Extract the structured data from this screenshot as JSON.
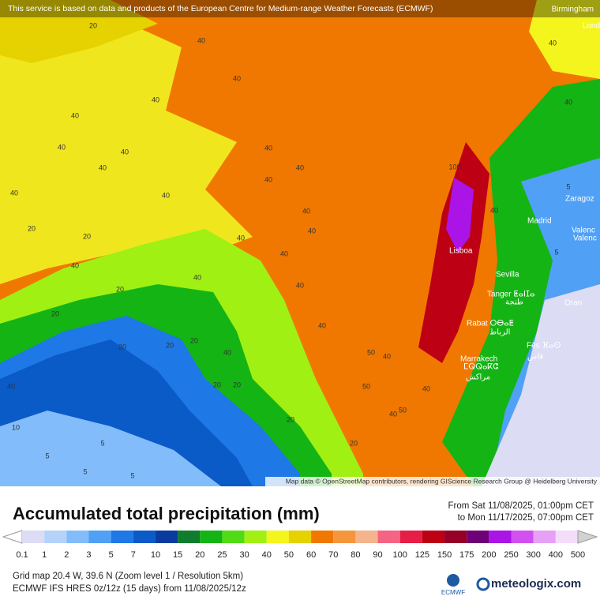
{
  "attribution": "This service is based on data and products of the European Centre for Medium-range Weather Forecasts (ECMWF)",
  "map_credit": "Map data © OpenStreetMap contributors, rendering GIScience Research Group @ Heidelberg University",
  "places": [
    "Birmingham",
    "Lond",
    "Zaragoz",
    "Madrid",
    "Valenc",
    "Valenc",
    "Lisboa",
    "Sevilla",
    "Tanger ⵟⴰⵏⵊⴰ",
    "طنجة",
    "Oran",
    "Rabat ⵔⴱⴰⵟ",
    "الرباط",
    "Fès ⴼⴰⵙ",
    "فاس",
    "Marrakech",
    "ⵎⵕⵕⴰⴽⵛ",
    "مراكش"
  ],
  "contour_labels": [
    40,
    40,
    40,
    40,
    40,
    40,
    40,
    40,
    40,
    40,
    40,
    40,
    40,
    40,
    40,
    40,
    40,
    40,
    40,
    40,
    40,
    40,
    40,
    40,
    40,
    40,
    40,
    40,
    20,
    20,
    20,
    20,
    20,
    20,
    20,
    20,
    20,
    20,
    20,
    20,
    5,
    5,
    5,
    5,
    5,
    5,
    50,
    50,
    50,
    100,
    10
  ],
  "legend": {
    "title": "Accumulated total precipitation (mm)",
    "period_from": "From Sat 11/08/2025, 01:00pm CET",
    "period_to": "to Mon 11/17/2025, 07:00pm CET",
    "values": [
      0.1,
      1,
      2,
      3,
      5,
      7,
      10,
      15,
      20,
      25,
      30,
      40,
      50,
      60,
      70,
      80,
      90,
      100,
      125,
      150,
      175,
      200,
      250,
      300,
      400,
      500
    ],
    "colors": [
      "#dcdcf5",
      "#b4d2fa",
      "#82bcfa",
      "#50a0f5",
      "#1e78e6",
      "#0a5ac8",
      "#0a3ca0",
      "#0f7d2d",
      "#14b414",
      "#50dc14",
      "#a0f014",
      "#f5f51e",
      "#e6d200",
      "#f07800",
      "#f5963c",
      "#f5b48c",
      "#f56482",
      "#e61e46",
      "#be0014",
      "#960028",
      "#6e0078",
      "#aa14e6",
      "#d250f0",
      "#e6a0f5",
      "#f5dcfa",
      "#d2d2d2"
    ]
  },
  "footer": {
    "grid": "Grid map 20.4 W, 39.6 N (Zoom level 1 / Resolution 5km)",
    "model": "ECMWF IFS HRES 0z/12z (15 days) from 11/08/2025/12z",
    "ecmwf_logo": "ECMWF",
    "brand": "meteologix.com"
  }
}
